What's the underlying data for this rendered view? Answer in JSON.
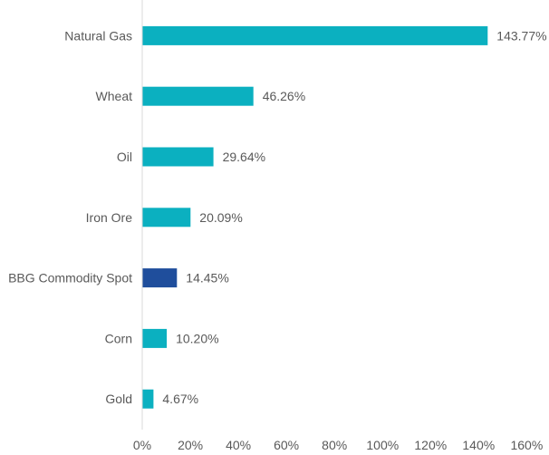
{
  "chart_data": {
    "type": "bar",
    "orientation": "horizontal",
    "categories": [
      "Natural Gas",
      "Wheat",
      "Oil",
      "Iron Ore",
      "BBG Commodity Spot",
      "Corn",
      "Gold"
    ],
    "values": [
      143.77,
      46.26,
      29.64,
      20.09,
      14.45,
      10.2,
      4.67
    ],
    "data_labels": [
      "143.77%",
      "46.26%",
      "29.64%",
      "20.09%",
      "14.45%",
      "10.20%",
      "4.67%"
    ],
    "highlight_category": "BBG Commodity Spot",
    "xlim": [
      0,
      160
    ],
    "x_ticks": [
      0,
      20,
      40,
      60,
      80,
      100,
      120,
      140,
      160
    ],
    "x_tick_labels": [
      "0%",
      "20%",
      "40%",
      "60%",
      "80%",
      "100%",
      "120%",
      "140%",
      "160%"
    ],
    "title": "",
    "xlabel": "",
    "ylabel": "",
    "grid": false,
    "legend": "none",
    "colors": {
      "bar": "#0bb0c0",
      "highlight": "#1f4e9c",
      "text": "#595959",
      "axis": "#d9d9d9"
    }
  }
}
